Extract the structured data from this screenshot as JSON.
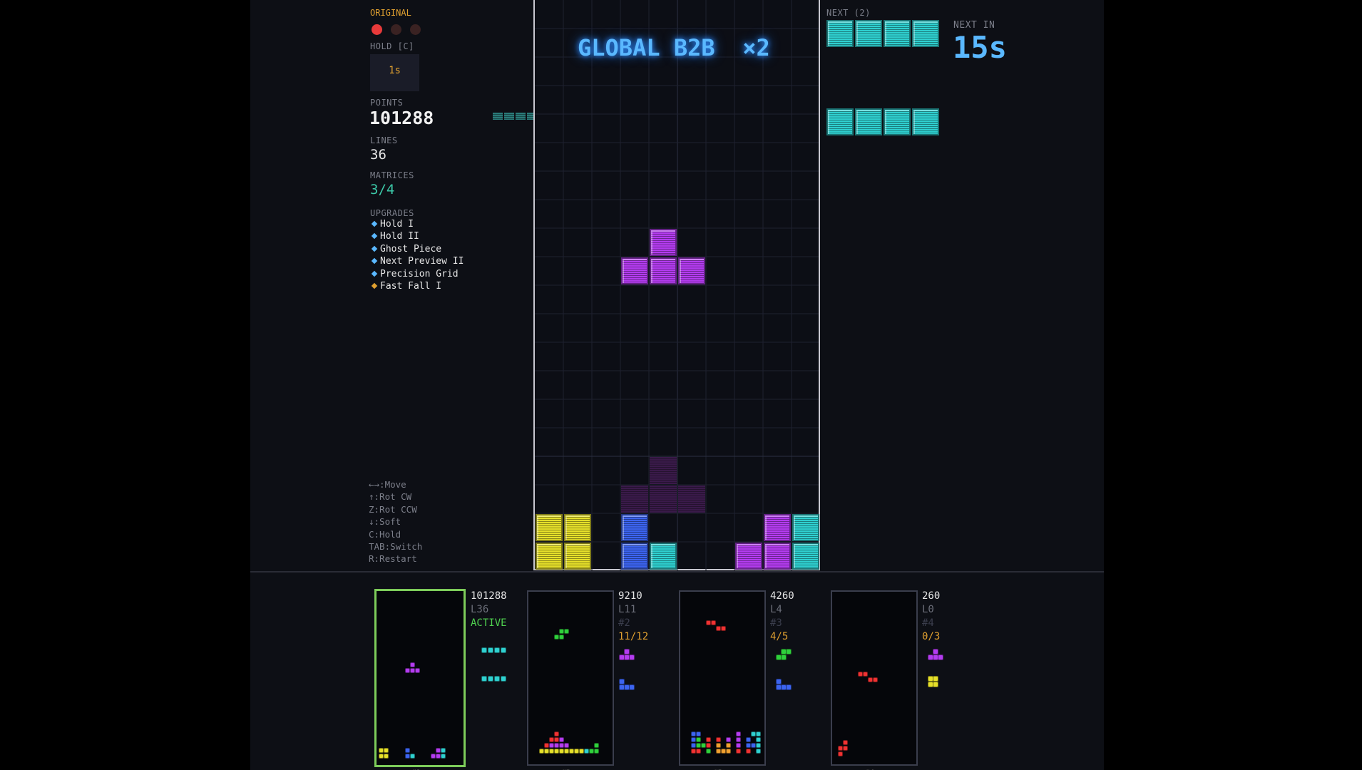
{
  "mode": "ORIGINAL",
  "lives": {
    "total": 3,
    "remaining": 1
  },
  "hold": {
    "label": "HOLD [C]",
    "cooldown": "1s"
  },
  "stats": {
    "points_label": "POINTS",
    "points": "101288",
    "lines_label": "LINES",
    "lines": "36",
    "matrices_label": "MATRICES",
    "matrices": "3/4"
  },
  "upgrades": {
    "label": "UPGRADES",
    "items": [
      {
        "name": "Hold I",
        "color": "#5ab8ff"
      },
      {
        "name": "Hold II",
        "color": "#5ab8ff"
      },
      {
        "name": "Ghost Piece",
        "color": "#5ab8ff"
      },
      {
        "name": "Next Preview II",
        "color": "#5ab8ff"
      },
      {
        "name": "Precision Grid",
        "color": "#5ab8ff"
      },
      {
        "name": "Fast Fall I",
        "color": "#e0a030"
      }
    ]
  },
  "controls": [
    "←→:Move",
    "↑:Rot CW",
    "Z:Rot CCW",
    "↓:Soft",
    "C:Hold",
    "TAB:Switch",
    "R:Restart"
  ],
  "banner": "GLOBAL B2B  ×2",
  "next": {
    "label": "NEXT (2)",
    "pieces": [
      "I",
      "I"
    ]
  },
  "timer": {
    "label": "NEXT IN",
    "value": "15s"
  },
  "colors": {
    "I": "#2fd0d0",
    "O": "#e6e02a",
    "T": "#b43cf0",
    "J": "#3c64f0",
    "S": "#2fd03c",
    "Z": "#f03232",
    "L": "#f0a030",
    "active_border": "#7dcc5a"
  },
  "board": {
    "cols": 10,
    "rows": 20,
    "active_piece": {
      "type": "T",
      "cells": [
        [
          4,
          8
        ],
        [
          3,
          9
        ],
        [
          4,
          9
        ],
        [
          5,
          9
        ]
      ]
    },
    "ghost": {
      "type": "T",
      "cells": [
        [
          4,
          16
        ],
        [
          3,
          17
        ],
        [
          4,
          17
        ],
        [
          5,
          17
        ]
      ]
    },
    "locked": [
      {
        "c": 0,
        "r": 18,
        "t": "O"
      },
      {
        "c": 1,
        "r": 18,
        "t": "O"
      },
      {
        "c": 0,
        "r": 19,
        "t": "O"
      },
      {
        "c": 1,
        "r": 19,
        "t": "O"
      },
      {
        "c": 3,
        "r": 18,
        "t": "J"
      },
      {
        "c": 3,
        "r": 19,
        "t": "J"
      },
      {
        "c": 4,
        "r": 19,
        "t": "I"
      },
      {
        "c": 8,
        "r": 18,
        "t": "T"
      },
      {
        "c": 9,
        "r": 18,
        "t": "I"
      },
      {
        "c": 7,
        "r": 19,
        "t": "T"
      },
      {
        "c": 8,
        "r": 19,
        "t": "T"
      },
      {
        "c": 9,
        "r": 19,
        "t": "I"
      }
    ]
  },
  "matrices": [
    {
      "score": "101288",
      "level": "L36",
      "status": "ACTIVE",
      "active": true,
      "index": "#1"
    },
    {
      "score": "9210",
      "level": "L11",
      "rank": "#2",
      "progress": "11/12",
      "active": false,
      "index": "#2"
    },
    {
      "score": "4260",
      "level": "L4",
      "rank": "#3",
      "progress": "4/5",
      "active": false,
      "index": "#3"
    },
    {
      "score": "260",
      "level": "L0",
      "rank": "#4",
      "progress": "0/3",
      "active": false,
      "index": "#4"
    }
  ]
}
